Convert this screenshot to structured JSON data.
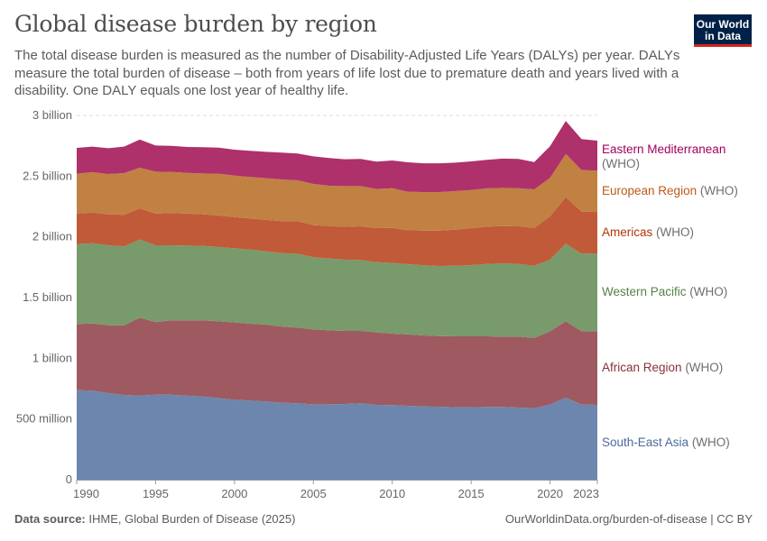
{
  "header": {
    "title": "Global disease burden by region",
    "subtitle": "The total disease burden is measured as the number of Disability-Adjusted Life Years (DALYs) per year. DALYs measure the total burden of disease – both from years of life lost due to premature death and years lived with a disability. One DALY equals one lost year of healthy life.",
    "logo_line1": "Our World",
    "logo_line2": "in Data"
  },
  "footer": {
    "source_label": "Data source:",
    "source": "IHME, Global Burden of Disease (2025)",
    "url": "OurWorldinData.org/burden-of-disease | CC BY"
  },
  "chart_data": {
    "type": "area",
    "stacked": true,
    "title": "",
    "xlabel": "",
    "ylabel": "",
    "unit": "billion DALYs",
    "ylim": [
      0,
      3
    ],
    "xlim": [
      1990,
      2023
    ],
    "grid": "horizontal dashed",
    "legend_placement": "right (inline labels)",
    "y_ticks": [
      {
        "value": 0,
        "label": "0"
      },
      {
        "value": 0.5,
        "label": "500 million"
      },
      {
        "value": 1,
        "label": "1 billion"
      },
      {
        "value": 1.5,
        "label": "1.5 billion"
      },
      {
        "value": 2,
        "label": "2 billion"
      },
      {
        "value": 2.5,
        "label": "2.5 billion"
      },
      {
        "value": 3,
        "label": "3 billion"
      }
    ],
    "x_ticks": [
      {
        "value": 1990,
        "label": "1990"
      },
      {
        "value": 1995,
        "label": "1995"
      },
      {
        "value": 2000,
        "label": "2000"
      },
      {
        "value": 2005,
        "label": "2005"
      },
      {
        "value": 2010,
        "label": "2010"
      },
      {
        "value": 2015,
        "label": "2015"
      },
      {
        "value": 2020,
        "label": "2020"
      },
      {
        "value": 2023,
        "label": "2023"
      }
    ],
    "x": [
      1990,
      1991,
      1992,
      1993,
      1994,
      1995,
      1996,
      1997,
      1998,
      1999,
      2000,
      2001,
      2002,
      2003,
      2004,
      2005,
      2006,
      2007,
      2008,
      2009,
      2010,
      2011,
      2012,
      2013,
      2014,
      2015,
      2016,
      2017,
      2018,
      2019,
      2020,
      2021,
      2022,
      2023
    ],
    "series": [
      {
        "name": "South-East Asia",
        "suffix": "(WHO)",
        "color": "#6d86ad",
        "label_color": "#4c6a9c",
        "values": [
          0.738,
          0.733,
          0.713,
          0.698,
          0.693,
          0.7,
          0.7,
          0.691,
          0.686,
          0.671,
          0.658,
          0.651,
          0.644,
          0.634,
          0.629,
          0.621,
          0.621,
          0.624,
          0.629,
          0.616,
          0.614,
          0.609,
          0.604,
          0.601,
          0.597,
          0.597,
          0.599,
          0.599,
          0.594,
          0.589,
          0.619,
          0.676,
          0.619,
          0.616
        ]
      },
      {
        "name": "African Region",
        "suffix": "(WHO)",
        "color": "#9e5a60",
        "label_color": "#883039",
        "values": [
          0.544,
          0.554,
          0.559,
          0.574,
          0.641,
          0.597,
          0.612,
          0.621,
          0.626,
          0.633,
          0.637,
          0.634,
          0.633,
          0.628,
          0.623,
          0.617,
          0.609,
          0.601,
          0.596,
          0.597,
          0.589,
          0.587,
          0.584,
          0.582,
          0.584,
          0.584,
          0.582,
          0.579,
          0.584,
          0.579,
          0.603,
          0.628,
          0.603,
          0.606
        ]
      },
      {
        "name": "Western Pacific",
        "suffix": "(WHO)",
        "color": "#799a6a",
        "label_color": "#578145",
        "values": [
          0.659,
          0.661,
          0.659,
          0.649,
          0.644,
          0.634,
          0.619,
          0.616,
          0.614,
          0.612,
          0.611,
          0.609,
          0.604,
          0.604,
          0.609,
          0.594,
          0.592,
          0.587,
          0.584,
          0.579,
          0.582,
          0.579,
          0.577,
          0.577,
          0.581,
          0.586,
          0.596,
          0.604,
          0.599,
          0.594,
          0.59,
          0.639,
          0.639,
          0.642
        ]
      },
      {
        "name": "Americas",
        "suffix": "(WHO)",
        "color": "#c15a38",
        "label_color": "#b13507",
        "values": [
          0.252,
          0.252,
          0.255,
          0.26,
          0.257,
          0.26,
          0.265,
          0.263,
          0.26,
          0.26,
          0.257,
          0.257,
          0.258,
          0.263,
          0.268,
          0.265,
          0.267,
          0.27,
          0.278,
          0.28,
          0.289,
          0.279,
          0.287,
          0.292,
          0.297,
          0.305,
          0.307,
          0.307,
          0.31,
          0.312,
          0.356,
          0.384,
          0.347,
          0.341
        ]
      },
      {
        "name": "European Region",
        "suffix": "(WHO)",
        "color": "#c18142",
        "label_color": "#be5915",
        "values": [
          0.327,
          0.332,
          0.331,
          0.344,
          0.334,
          0.346,
          0.339,
          0.336,
          0.336,
          0.344,
          0.342,
          0.342,
          0.344,
          0.344,
          0.336,
          0.339,
          0.332,
          0.336,
          0.331,
          0.322,
          0.327,
          0.317,
          0.317,
          0.317,
          0.317,
          0.314,
          0.315,
          0.314,
          0.314,
          0.317,
          0.317,
          0.356,
          0.342,
          0.34
        ]
      },
      {
        "name": "Eastern Mediterranean",
        "suffix": "(WHO)",
        "color": "#ae316b",
        "label_color": "#a2005f",
        "values": [
          0.213,
          0.211,
          0.213,
          0.218,
          0.233,
          0.215,
          0.215,
          0.213,
          0.216,
          0.215,
          0.213,
          0.215,
          0.217,
          0.22,
          0.221,
          0.227,
          0.228,
          0.221,
          0.223,
          0.225,
          0.228,
          0.243,
          0.237,
          0.237,
          0.235,
          0.235,
          0.235,
          0.241,
          0.24,
          0.225,
          0.26,
          0.272,
          0.255,
          0.247
        ]
      }
    ]
  }
}
